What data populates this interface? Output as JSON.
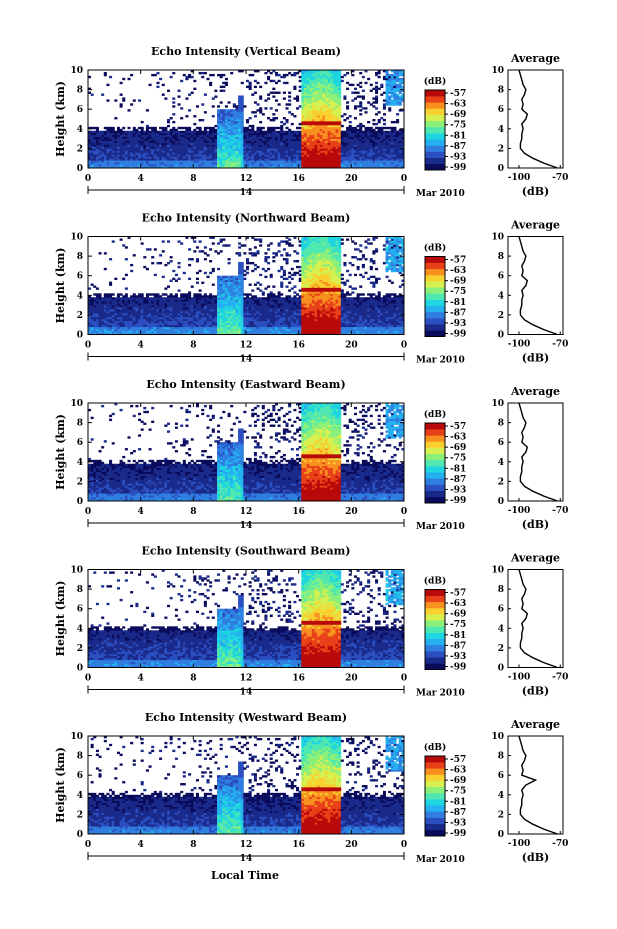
{
  "figure": {
    "xlabel": "Local Time",
    "month_label": "Mar 2010",
    "day_label": "14"
  },
  "colorbar": {
    "unit": "(dB)",
    "ticks": [
      "-57",
      "-63",
      "-69",
      "-75",
      "-81",
      "-87",
      "-93",
      "-99"
    ],
    "colors": [
      "#0b0b5c",
      "#1a2a8a",
      "#2b4fc0",
      "#2f7ee0",
      "#25b0f0",
      "#1fd6e0",
      "#4fe8b0",
      "#8af07a",
      "#d6f050",
      "#f8d030",
      "#f89020",
      "#e84018",
      "#b80a0a"
    ]
  },
  "panels": [
    {
      "title": "Echo Intensity (Vertical Beam)",
      "avg_title": "Average",
      "avg_xlabel": "(dB)",
      "avg_xticks": [
        "-100",
        "-70"
      ]
    },
    {
      "title": "Echo Intensity (Northward Beam)",
      "avg_title": "Average",
      "avg_xlabel": "(dB)",
      "avg_xticks": [
        "-100",
        "-70"
      ]
    },
    {
      "title": "Echo Intensity (Eastward Beam)",
      "avg_title": "Average",
      "avg_xlabel": "(dB)",
      "avg_xticks": [
        "-100",
        "-70"
      ]
    },
    {
      "title": "Echo Intensity (Southward Beam)",
      "avg_title": "Average",
      "avg_xlabel": "(dB)",
      "avg_xticks": [
        "-100",
        "-70"
      ]
    },
    {
      "title": "Echo Intensity (Westward Beam)",
      "avg_title": "Average",
      "avg_xlabel": "(dB)",
      "avg_xticks": [
        "-100",
        "-70"
      ]
    }
  ],
  "chart_data": {
    "type": "heatmap",
    "ylabel": "Height (km)",
    "x_ticks": [
      "0",
      "4",
      "8",
      "12",
      "16",
      "20",
      "0"
    ],
    "x_range_hours": [
      0,
      24
    ],
    "y_ticks": [
      "0",
      "2",
      "4",
      "6",
      "8",
      "10"
    ],
    "y_range_km": [
      0,
      10
    ],
    "value_range_db": [
      -99,
      -57
    ],
    "average_profile": {
      "heights_km": [
        0,
        0.5,
        1,
        1.5,
        2,
        2.5,
        3,
        3.5,
        4,
        4.5,
        5,
        5.5,
        6,
        6.5,
        7,
        7.5,
        8,
        8.5,
        9,
        9.5,
        10
      ],
      "values_db": [
        -72,
        -82,
        -90,
        -96,
        -99,
        -99,
        -98,
        -98,
        -97,
        -98,
        -95,
        -94,
        -98,
        -97,
        -98,
        -96,
        -95,
        -97,
        -98,
        -99,
        -100
      ],
      "xlim_db": [
        -108,
        -68
      ]
    }
  }
}
